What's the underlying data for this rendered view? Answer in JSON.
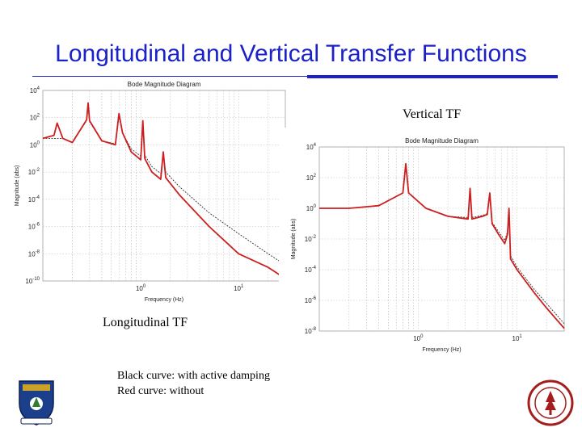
{
  "slide": {
    "title": "Longitudinal and Vertical Transfer Functions",
    "vertical_label": "Vertical TF",
    "longitudinal_label": "Longitudinal TF",
    "caption": [
      "Black curve: with active damping",
      "Red curve: without"
    ]
  },
  "colors": {
    "title": "#1a22c8",
    "undamped": "#cc1f1f",
    "damped": "#333333"
  },
  "chart_data": [
    {
      "id": "longitudinal",
      "type": "line",
      "title": "Bode Magnitude Diagram",
      "xlabel": "Frequency (Hz)",
      "ylabel": "Magnitude (abs)",
      "xscale": "log",
      "yscale": "log",
      "xlim": [
        0.1,
        30
      ],
      "ylim": [
        1e-10,
        10000
      ],
      "yticks": [
        10000,
        100,
        1,
        0.01,
        0.0001,
        1e-06,
        1e-08,
        1e-10
      ],
      "ytick_labels": [
        "10^4",
        "10^2",
        "10^0",
        "10^-2",
        "10^-4",
        "10^-6",
        "10^-8",
        "10^-10"
      ],
      "xticks": [
        1,
        10
      ],
      "xtick_labels": [
        "10^0",
        "10^1"
      ],
      "grid": true,
      "series": [
        {
          "name": "Red curve: without",
          "color": "#cc1f1f",
          "x": [
            0.1,
            0.13,
            0.14,
            0.16,
            0.2,
            0.28,
            0.29,
            0.3,
            0.4,
            0.55,
            0.6,
            0.65,
            0.8,
            1.0,
            1.05,
            1.1,
            1.3,
            1.6,
            1.7,
            1.8,
            2.5,
            5,
            10,
            20,
            30
          ],
          "y": [
            3,
            5,
            40,
            3,
            1.5,
            70,
            1200,
            60,
            2,
            1,
            200,
            8,
            0.3,
            0.08,
            60,
            0.1,
            0.01,
            0.003,
            0.3,
            0.004,
            0.0002,
            1e-06,
            1e-08,
            1e-09,
            1.5e-10
          ]
        },
        {
          "name": "Black curve: with active damping",
          "color": "#333333",
          "x": [
            0.1,
            0.16,
            0.2,
            0.28,
            0.29,
            0.3,
            0.4,
            0.55,
            0.6,
            0.65,
            0.8,
            1.0,
            1.05,
            1.1,
            1.3,
            1.6,
            1.7,
            1.8,
            2.5,
            5,
            10,
            20,
            30
          ],
          "y": [
            3,
            3,
            1.5,
            60,
            800,
            50,
            2,
            1.2,
            150,
            8,
            0.5,
            0.15,
            40,
            0.18,
            0.025,
            0.008,
            0.2,
            0.01,
            0.0008,
            1e-05,
            3e-07,
            1e-08,
            1.5e-09
          ]
        }
      ]
    },
    {
      "id": "vertical",
      "type": "line",
      "title": "Bode Magnitude Diagram",
      "xlabel": "Frequency (Hz)",
      "ylabel": "Magnitude (abs)",
      "xscale": "log",
      "yscale": "log",
      "xlim": [
        0.1,
        30
      ],
      "ylim": [
        1e-08,
        10000
      ],
      "yticks": [
        10000,
        100,
        1,
        0.01,
        0.0001,
        1e-06,
        1e-08
      ],
      "ytick_labels": [
        "10^4",
        "10^2",
        "10^0",
        "10^-2",
        "10^-4",
        "10^-6",
        "10^-8"
      ],
      "xticks": [
        1,
        10
      ],
      "xtick_labels": [
        "10^0",
        "10^1"
      ],
      "grid": true,
      "series": [
        {
          "name": "Red curve: without",
          "color": "#cc1f1f",
          "x": [
            0.1,
            0.2,
            0.4,
            0.7,
            0.75,
            0.8,
            1.2,
            2.0,
            3.2,
            3.35,
            3.5,
            4.5,
            5.0,
            5.3,
            5.6,
            6.5,
            7.5,
            8.0,
            8.3,
            8.6,
            10,
            15,
            20,
            30
          ],
          "y": [
            1,
            1,
            1.5,
            10,
            800,
            10,
            1,
            0.3,
            0.2,
            20,
            0.2,
            0.3,
            0.4,
            10,
            0.1,
            0.02,
            0.005,
            0.02,
            1,
            0.0005,
            0.0001,
            3e-06,
            3e-07,
            1.5e-08
          ]
        },
        {
          "name": "Black curve: with active damping",
          "color": "#333333",
          "x": [
            0.1,
            0.2,
            0.4,
            0.7,
            0.75,
            0.8,
            1.2,
            2.0,
            3.2,
            3.35,
            3.5,
            4.5,
            5.0,
            5.3,
            5.6,
            6.5,
            7.5,
            8.0,
            8.3,
            8.6,
            10,
            15,
            20,
            30
          ],
          "y": [
            1,
            1,
            1.5,
            10,
            600,
            10,
            1,
            0.3,
            0.25,
            12,
            0.25,
            0.35,
            0.45,
            6,
            0.12,
            0.03,
            0.008,
            0.03,
            0.5,
            0.0008,
            0.00015,
            5e-06,
            6e-07,
            3e-08
          ]
        }
      ]
    }
  ]
}
